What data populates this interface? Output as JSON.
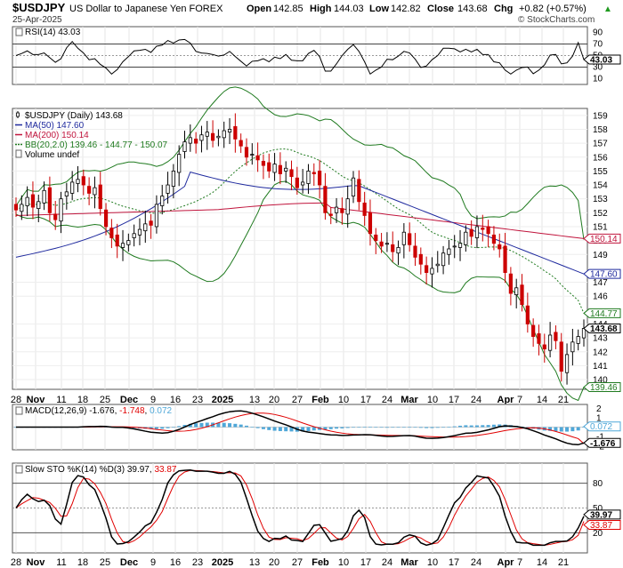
{
  "header": {
    "symbol": "$USDJPY",
    "name": "US Dollar to Japanese Yen FOREX",
    "date": "25-Apr-2025",
    "watermark": "© StockCharts.com",
    "ohlc": {
      "open_label": "Open",
      "open": "142.85",
      "high_label": "High",
      "high": "144.03",
      "low_label": "Low",
      "low": "142.82",
      "close_label": "Close",
      "close": "143.68",
      "chg_label": "Chg",
      "chg": "+0.82 (+0.57%)"
    },
    "chg_arrow": "▲"
  },
  "colors": {
    "price_up": "#000000",
    "price_down": "#cc0000",
    "ma50": "#1f2a9e",
    "ma200": "#c0143c",
    "bb": "#1f7a1f",
    "volume": "#4fb3e8",
    "macd_line": "#000000",
    "macd_signal": "#e00000",
    "macd_hist": "#4fa7d8",
    "sto_k": "#000000",
    "sto_d": "#e00000"
  },
  "x_axis": {
    "labels": [
      "28",
      "Nov",
      "11",
      "18",
      "25",
      "Dec",
      "9",
      "16",
      "23",
      "2025",
      "13",
      "20",
      "27",
      "Feb",
      "10",
      "17",
      "24",
      "Mar",
      "10",
      "17",
      "24",
      "Apr",
      "7",
      "14",
      "21"
    ],
    "bold": [
      "Nov",
      "Dec",
      "2025",
      "Feb",
      "Mar",
      "Apr"
    ]
  },
  "rsi_panel": {
    "label": "RSI(14) 43.03",
    "ticks": [
      "90",
      "70",
      "50",
      "30",
      "10"
    ],
    "last_label": "43.03"
  },
  "price_panel": {
    "legend": [
      {
        "text": "$USDJPY (Daily) 143.68",
        "key": "price"
      },
      {
        "text": "MA(50) 147.60",
        "key": "ma50"
      },
      {
        "text": "MA(200) 150.14",
        "key": "ma200"
      },
      {
        "text": "BB(20,2.0) 139.46 - 144.77 - 150.07",
        "key": "bb"
      },
      {
        "text": "Volume undef",
        "key": "volume"
      }
    ],
    "ticks": [
      "159",
      "158",
      "157",
      "156",
      "155",
      "154",
      "153",
      "152",
      "151",
      "150",
      "149",
      "147",
      "146",
      "144",
      "143",
      "142",
      "141",
      "140"
    ],
    "flags": [
      {
        "value": 150.14,
        "text": "150.14",
        "color": "#c0143c"
      },
      {
        "value": 147.6,
        "text": "147.60",
        "color": "#1f2a9e"
      },
      {
        "value": 144.77,
        "text": "144.77",
        "color": "#1f7a1f"
      },
      {
        "value": 143.68,
        "text": "143.68",
        "color": "#000000"
      },
      {
        "value": 139.46,
        "text": "139.46",
        "color": "#1f7a1f"
      }
    ]
  },
  "macd_panel": {
    "label_prefix": "MACD(12,26,9)",
    "macd_value": "-1.676",
    "signal_value": "-1.748",
    "hist_value": "0.072",
    "ticks": [
      "2",
      "1",
      "-1",
      "-2"
    ],
    "flags": [
      {
        "value": 0.072,
        "text": "0.072",
        "color": "#4fa7d8"
      },
      {
        "value": -1.676,
        "text": "-1.676",
        "color": "#000000"
      }
    ]
  },
  "sto_panel": {
    "label_prefix": "Slow STO %K(14) %D(3)",
    "k_value": "39.97",
    "d_value": "33.87",
    "ticks": [
      "80",
      "50",
      "20"
    ],
    "flags": [
      {
        "value": 39.97,
        "text": "39.97",
        "color": "#000000"
      },
      {
        "value": 33.87,
        "text": "33.87",
        "color": "#e00000"
      }
    ]
  },
  "chart_data": {
    "type": "candlestick",
    "title": "$USDJPY US Dollar to Japanese Yen FOREX",
    "x_dates": [
      "2024-10-28",
      "2024-11-01",
      "2024-11-11",
      "2024-11-18",
      "2024-11-25",
      "2024-12-02",
      "2024-12-09",
      "2024-12-16",
      "2024-12-23",
      "2025-01-02",
      "2025-01-13",
      "2025-01-20",
      "2025-01-27",
      "2025-02-03",
      "2025-02-10",
      "2025-02-17",
      "2025-02-24",
      "2025-03-03",
      "2025-03-10",
      "2025-03-17",
      "2025-03-24",
      "2025-04-01",
      "2025-04-07",
      "2025-04-14",
      "2025-04-21"
    ],
    "price": {
      "ylim": [
        139.3,
        159.5
      ],
      "close_series": [
        152.2,
        152.6,
        153.1,
        152.4,
        152.8,
        153.6,
        152.0,
        151.5,
        153.0,
        153.5,
        154.2,
        154.4,
        154.0,
        153.4,
        153.8,
        152.3,
        151.0,
        150.2,
        149.6,
        149.8,
        150.0,
        150.5,
        150.8,
        151.2,
        151.1,
        152.6,
        153.2,
        154.0,
        155.0,
        156.2,
        157.1,
        157.4,
        157.0,
        157.6,
        157.8,
        157.2,
        157.5,
        157.9,
        158.0,
        157.3,
        156.8,
        156.0,
        156.2,
        155.8,
        155.4,
        155.0,
        155.5,
        154.8,
        155.2,
        154.6,
        153.8,
        154.2,
        155.0,
        154.8,
        154.0,
        152.0,
        151.8,
        152.4,
        152.0,
        153.0,
        154.5,
        152.8,
        151.8,
        150.5,
        150.0,
        149.6,
        149.8,
        149.2,
        149.5,
        150.6,
        149.7,
        148.8,
        148.3,
        147.7,
        148.0,
        148.3,
        149.1,
        149.4,
        149.6,
        149.8,
        150.6,
        150.3,
        151.0,
        150.8,
        150.5,
        149.8,
        149.4,
        147.7,
        146.2,
        146.6,
        145.4,
        144.0,
        143.1,
        142.6,
        142.2,
        143.2,
        142.8,
        140.6,
        141.8,
        142.7,
        143.1,
        143.68
      ],
      "ma50_last": 147.6,
      "ma200_last": 150.14,
      "bb_lower": 139.46,
      "bb_mid": 144.77,
      "bb_upper": 150.07
    },
    "rsi": {
      "ylim": [
        0,
        100
      ],
      "last": 43.03
    },
    "macd": {
      "ylim": [
        -2.4,
        2.4
      ],
      "macd_last": -1.676,
      "signal_last": -1.748,
      "hist_last": 0.072
    },
    "stochastic": {
      "ylim": [
        0,
        100
      ],
      "k_last": 39.97,
      "d_last": 33.87
    }
  }
}
